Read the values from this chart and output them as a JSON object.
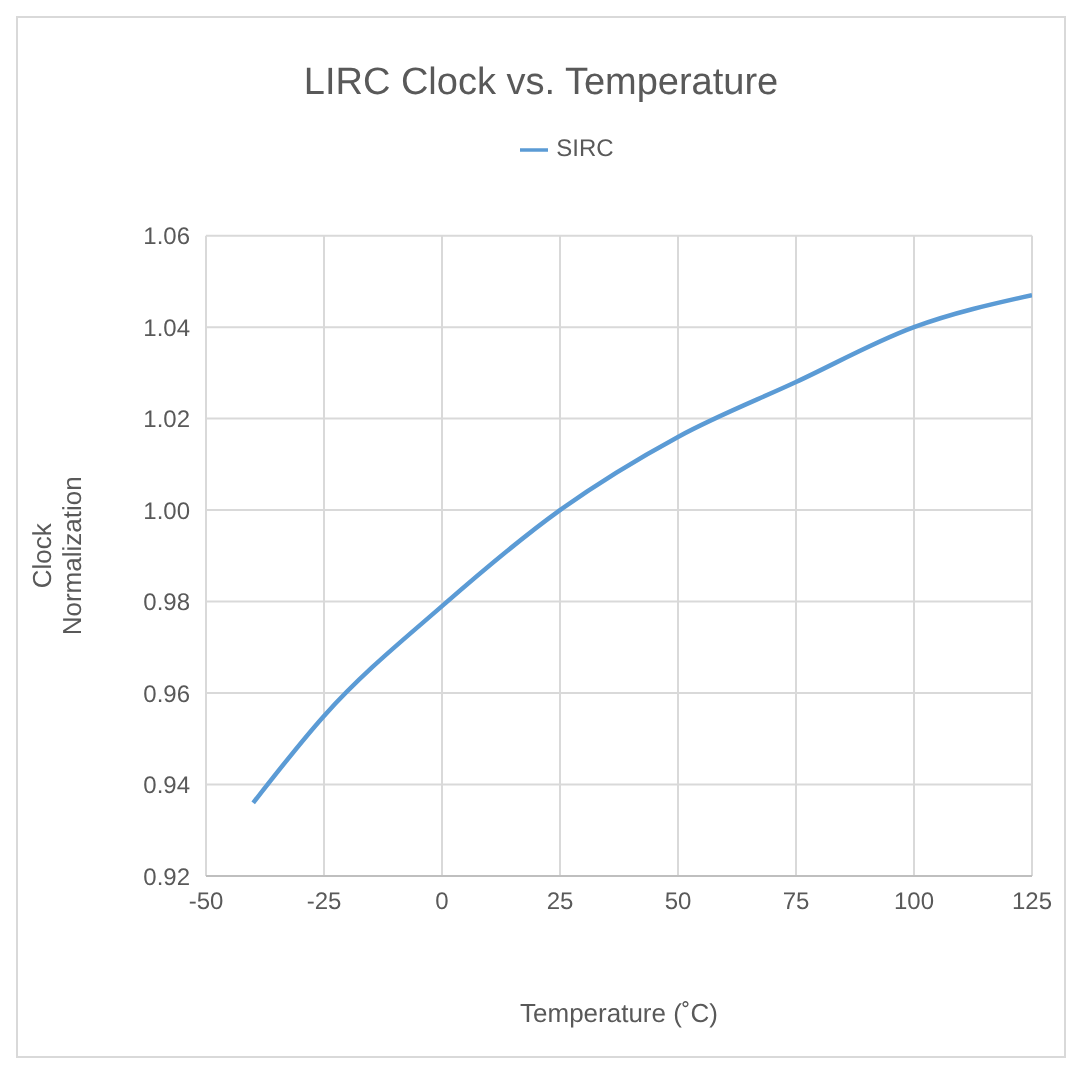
{
  "chart_data": {
    "type": "line",
    "title": "LIRC Clock vs. Temperature",
    "xlabel": "Temperature (˚C)",
    "ylabel": "Clock\nNormalization",
    "x": [
      -40,
      -25,
      0,
      25,
      50,
      75,
      100,
      125
    ],
    "series": [
      {
        "name": "SIRC",
        "color": "#5b9bd5",
        "values": [
          0.936,
          0.955,
          0.979,
          1.0,
          1.016,
          1.028,
          1.04,
          1.047
        ]
      }
    ],
    "xlim": [
      -50,
      125
    ],
    "xticks": [
      -50,
      -25,
      0,
      25,
      50,
      75,
      100,
      125
    ],
    "ylim": [
      0.92,
      1.06
    ],
    "yticks": [
      {
        "value": 0.92,
        "label": "0.92"
      },
      {
        "value": 0.94,
        "label": "0.94"
      },
      {
        "value": 0.96,
        "label": "0.96"
      },
      {
        "value": 0.98,
        "label": "0.98"
      },
      {
        "value": 1.0,
        "label": "1.00"
      },
      {
        "value": 1.02,
        "label": "1.02"
      },
      {
        "value": 1.04,
        "label": "1.04"
      },
      {
        "value": 1.06,
        "label": "1.06"
      }
    ],
    "grid": true,
    "legend": "top",
    "marker": "none",
    "line_style": "solid"
  }
}
